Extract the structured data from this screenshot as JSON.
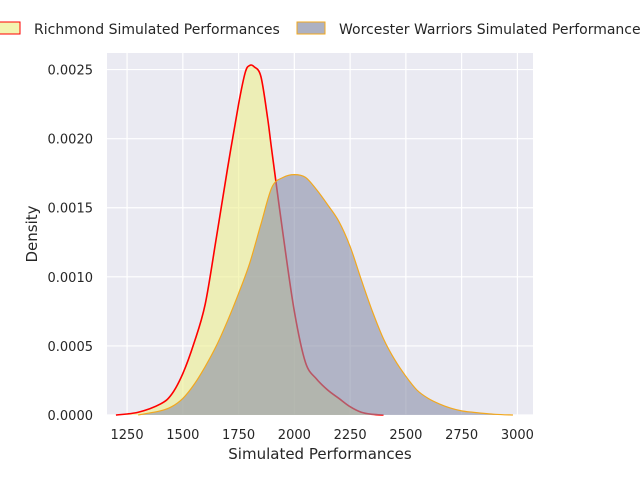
{
  "chart_data": {
    "type": "area",
    "title": "",
    "xlabel": "Simulated Performances",
    "ylabel": "Density",
    "xlim": [
      1160,
      3070
    ],
    "ylim": [
      0,
      0.00262
    ],
    "x_ticks": [
      "1250",
      "1500",
      "1750",
      "2000",
      "2250",
      "2500",
      "2750",
      "3000"
    ],
    "x_tick_values": [
      1250,
      1500,
      1750,
      2000,
      2250,
      2500,
      2750,
      3000
    ],
    "y_ticks": [
      "0.0000",
      "0.0005",
      "0.0010",
      "0.0015",
      "0.0020",
      "0.0025"
    ],
    "y_tick_values": [
      0,
      0.0005,
      0.001,
      0.0015,
      0.002,
      0.0025
    ],
    "grid": true,
    "legend_position": "top",
    "series": [
      {
        "name": "Richmond Simulated Performances",
        "fill_color": "#eef08e",
        "edge_color": "#ff0000",
        "x": [
          1200,
          1300,
          1400,
          1450,
          1500,
          1550,
          1600,
          1650,
          1700,
          1750,
          1780,
          1800,
          1820,
          1850,
          1880,
          1900,
          1950,
          2000,
          2050,
          2100,
          2150,
          2200,
          2250,
          2300,
          2350,
          2400
        ],
        "y": [
          0,
          2e-05,
          8e-05,
          0.00015,
          0.0003,
          0.00052,
          0.0008,
          0.00128,
          0.00178,
          0.00225,
          0.00248,
          0.00253,
          0.00252,
          0.00245,
          0.00215,
          0.0019,
          0.0013,
          0.00075,
          0.00038,
          0.00026,
          0.00018,
          0.00012,
          6e-05,
          2e-05,
          5e-06,
          0
        ]
      },
      {
        "name": "Worcester Warriors Simulated Performances",
        "fill_color": "#8a90a8",
        "edge_color": "#f2a81e",
        "x": [
          1300,
          1400,
          1450,
          1500,
          1550,
          1600,
          1650,
          1700,
          1750,
          1800,
          1850,
          1900,
          1950,
          2000,
          2050,
          2100,
          2150,
          2200,
          2250,
          2300,
          2350,
          2400,
          2450,
          2500,
          2550,
          2600,
          2650,
          2700,
          2750,
          2800,
          2900,
          2980
        ],
        "y": [
          0,
          3e-05,
          6e-05,
          0.00012,
          0.00022,
          0.00035,
          0.0005,
          0.00068,
          0.00088,
          0.0011,
          0.00138,
          0.00165,
          0.00172,
          0.00174,
          0.00172,
          0.00163,
          0.00152,
          0.0014,
          0.00122,
          0.00098,
          0.00075,
          0.00055,
          0.0004,
          0.00028,
          0.00018,
          0.00012,
          8e-05,
          5e-05,
          3e-05,
          2e-05,
          5e-06,
          0
        ]
      }
    ]
  }
}
